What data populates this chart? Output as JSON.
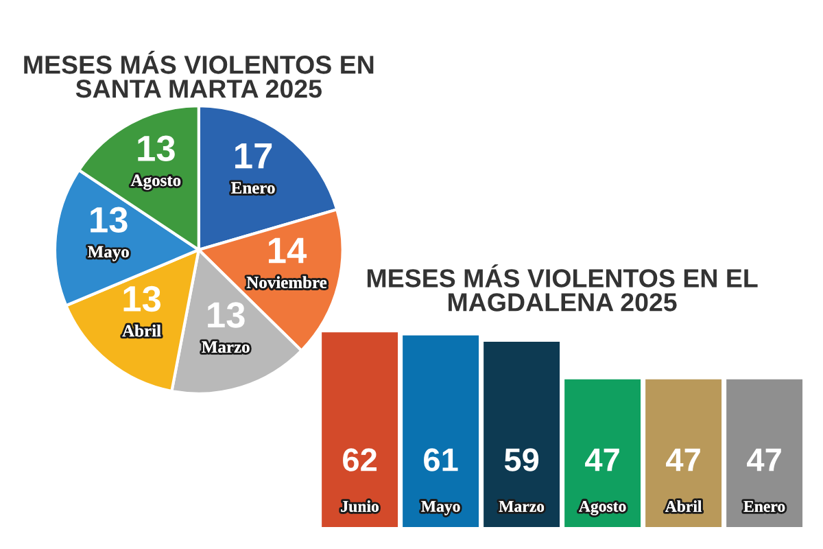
{
  "chart_data": [
    {
      "type": "pie",
      "title": "MESES MÁS VIOLENTOS EN\nSANTA MARTA 2025",
      "categories": [
        "Enero",
        "Noviembre",
        "Marzo",
        "Abril",
        "Mayo",
        "Agosto"
      ],
      "values": [
        17,
        14,
        13,
        13,
        13,
        13
      ],
      "colors": [
        "#2a64b0",
        "#f0773a",
        "#b9b9b9",
        "#f6b51b",
        "#2e8bcf",
        "#3e9a3e"
      ],
      "data_labels": true
    },
    {
      "type": "bar",
      "title": "MESES MÁS VIOLENTOS EN EL\nMAGDALENA 2025",
      "categories": [
        "Junio",
        "Mayo",
        "Marzo",
        "Agosto",
        "Abril",
        "Enero"
      ],
      "values": [
        62,
        61,
        59,
        47,
        47,
        47
      ],
      "colors": [
        "#d34a2a",
        "#0a72b0",
        "#0d3a52",
        "#10a060",
        "#b9995a",
        "#8f8f8f"
      ],
      "data_labels": true
    }
  ]
}
